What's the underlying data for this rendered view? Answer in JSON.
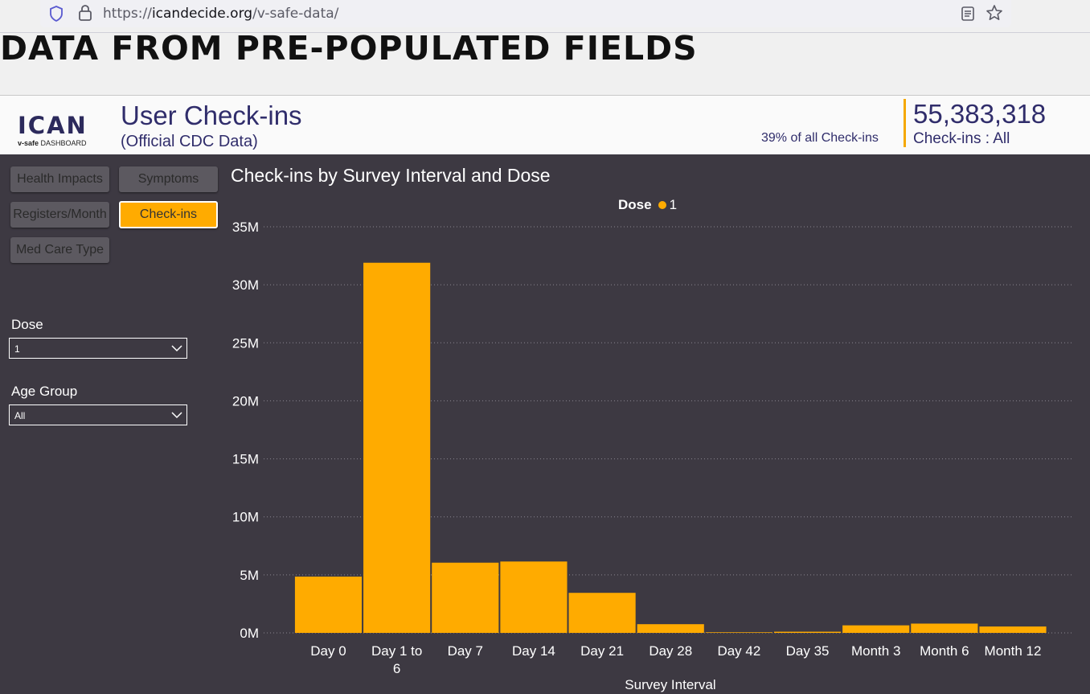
{
  "browser": {
    "url_prefix": "https://",
    "url_domain": "icandecide.org",
    "url_path": "/v-safe-data/"
  },
  "headline": "DATA FROM PRE-POPULATED FIELDS",
  "header": {
    "logo_word": "ICAN",
    "logo_sub_bold": "v-safe",
    "logo_sub_rest": " DASHBOARD",
    "title": "User Check-ins",
    "subtitle": "(Official CDC Data)",
    "percent_note": "39% of all Check-ins",
    "kpi_value": "55,383,318",
    "kpi_label": "Check-ins : All"
  },
  "nav": [
    {
      "label": "Health Impacts",
      "active": false
    },
    {
      "label": "Symptoms",
      "active": false
    },
    {
      "label": "Registers/Month",
      "active": false
    },
    {
      "label": "Check-ins",
      "active": true
    },
    {
      "label": "Med Care Type",
      "active": false
    }
  ],
  "filters": {
    "dose_label": "Dose",
    "dose_value": "1",
    "age_label": "Age Group",
    "age_value": "All"
  },
  "colors": {
    "accent": "#ffab00",
    "panel_bg": "#3d3942",
    "header_text": "#302d6b"
  },
  "chart_data": {
    "type": "bar",
    "title": "Check-ins by Survey Interval and Dose",
    "legend_title": "Dose",
    "series": [
      {
        "name": "1",
        "values": [
          4.85,
          31.9,
          6.05,
          6.15,
          3.45,
          0.75,
          0.05,
          0.1,
          0.65,
          0.8,
          0.55
        ]
      }
    ],
    "categories": [
      "Day 0",
      "Day 1 to 6",
      "Day 7",
      "Day 14",
      "Day 21",
      "Day 28",
      "Day 42",
      "Day 35",
      "Month 3",
      "Month 6",
      "Month 12"
    ],
    "category_lines": [
      [
        "Day 0"
      ],
      [
        "Day 1 to",
        "6"
      ],
      [
        "Day 7"
      ],
      [
        "Day 14"
      ],
      [
        "Day 21"
      ],
      [
        "Day 28"
      ],
      [
        "Day 42"
      ],
      [
        "Day 35"
      ],
      [
        "Month 3"
      ],
      [
        "Month 6"
      ],
      [
        "Month 12"
      ]
    ],
    "xlabel": "Survey Interval",
    "ylabel": "",
    "ylim": [
      0,
      35
    ],
    "yticks": [
      0,
      5,
      10,
      15,
      20,
      25,
      30,
      35
    ],
    "ytick_labels": [
      "0M",
      "5M",
      "10M",
      "15M",
      "20M",
      "25M",
      "30M",
      "35M"
    ],
    "grid": true,
    "legend_position": "top-center"
  }
}
